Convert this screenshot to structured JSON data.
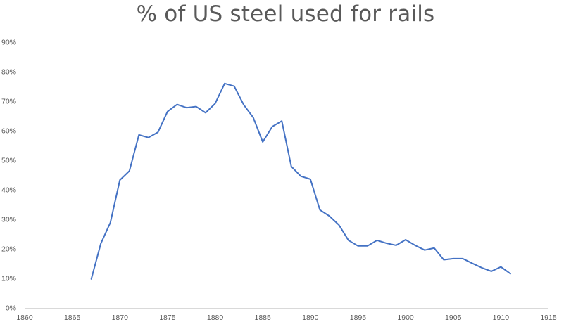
{
  "chart_data": {
    "type": "line",
    "title": "% of US steel used for rails",
    "xlabel": "",
    "ylabel": "",
    "xlim": [
      1860,
      1915
    ],
    "ylim": [
      0,
      90
    ],
    "x_ticks": [
      1860,
      1865,
      1870,
      1875,
      1880,
      1885,
      1890,
      1895,
      1900,
      1905,
      1910,
      1915
    ],
    "y_ticks": [
      0,
      10,
      20,
      30,
      40,
      50,
      60,
      70,
      80,
      90
    ],
    "y_tick_labels": [
      "0%",
      "10%",
      "20%",
      "30%",
      "40%",
      "50%",
      "60%",
      "70%",
      "80%",
      "90%"
    ],
    "grid": false,
    "legend": "none",
    "line_color": "#4472C4",
    "series": [
      {
        "x": [
          1867,
          1868,
          1869,
          1870,
          1871,
          1872,
          1873,
          1874,
          1875,
          1876,
          1877,
          1878,
          1879,
          1880,
          1881,
          1882,
          1883,
          1884,
          1885,
          1886,
          1887,
          1888,
          1889,
          1890,
          1891,
          1892,
          1893,
          1894,
          1895,
          1896,
          1897,
          1898,
          1899,
          1900,
          1901,
          1902,
          1903,
          1904,
          1905,
          1906,
          1907,
          1908,
          1909,
          1910,
          1911
        ],
        "values": [
          9.8,
          21.8,
          28.9,
          43.3,
          46.4,
          58.6,
          57.7,
          59.5,
          66.5,
          68.9,
          67.8,
          68.2,
          66.1,
          69.2,
          76.0,
          75.1,
          68.8,
          64.5,
          56.2,
          61.4,
          63.3,
          47.9,
          44.6,
          43.6,
          33.2,
          31.1,
          28.1,
          22.9,
          21.0,
          21.0,
          22.9,
          21.9,
          21.2,
          23.1,
          21.2,
          19.6,
          20.3,
          16.3,
          16.7,
          16.7,
          15.1,
          13.6,
          12.4,
          13.9,
          11.6
        ]
      }
    ]
  }
}
